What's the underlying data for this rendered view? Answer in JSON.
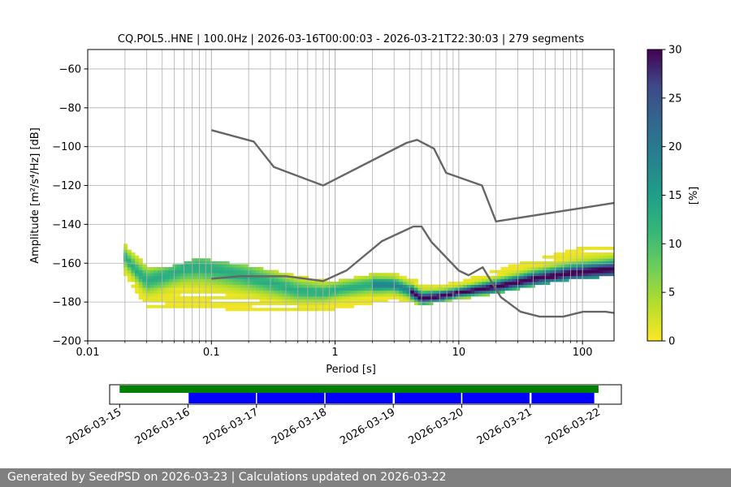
{
  "chart_data": {
    "type": "heatmap",
    "title": "CQ.POL5..HNE | 100.0Hz | 2026-03-16T00:00:03 - 2026-03-21T22:30:03 | 279 segments",
    "xlabel": "Period [s]",
    "ylabel": "Amplitude [m²/s⁴/Hz] [dB]",
    "x_scale": "log",
    "xlim": [
      0.01,
      180
    ],
    "ylim": [
      -200,
      -50
    ],
    "x_ticks": [
      0.01,
      0.1,
      1,
      10,
      100
    ],
    "x_tick_labels": [
      "0.01",
      "0.1",
      "1",
      "10",
      "100"
    ],
    "y_ticks": [
      -200,
      -180,
      -160,
      -140,
      -120,
      -100,
      -80,
      -60
    ],
    "y_tick_labels": [
      "−200",
      "−180",
      "−160",
      "−140",
      "−120",
      "−100",
      "−80",
      "−60"
    ],
    "grid": true,
    "colormap": "viridis_r",
    "colorbar": {
      "label": "[%]",
      "range": [
        0,
        30
      ],
      "ticks": [
        0,
        5,
        10,
        15,
        20,
        25,
        30
      ],
      "tick_labels": [
        "0",
        "5",
        "10",
        "15",
        "20",
        "25",
        "30"
      ]
    },
    "mode_curve": [
      {
        "period": 0.02,
        "db": -157
      },
      {
        "period": 0.025,
        "db": -164
      },
      {
        "period": 0.03,
        "db": -169
      },
      {
        "period": 0.04,
        "db": -167
      },
      {
        "period": 0.06,
        "db": -163
      },
      {
        "period": 0.08,
        "db": -162
      },
      {
        "period": 0.12,
        "db": -164
      },
      {
        "period": 0.2,
        "db": -167
      },
      {
        "period": 0.3,
        "db": -170
      },
      {
        "period": 0.5,
        "db": -174
      },
      {
        "period": 0.8,
        "db": -175
      },
      {
        "period": 1.2,
        "db": -173
      },
      {
        "period": 2,
        "db": -171
      },
      {
        "period": 3,
        "db": -171
      },
      {
        "period": 4,
        "db": -174
      },
      {
        "period": 5,
        "db": -178
      },
      {
        "period": 7,
        "db": -177
      },
      {
        "period": 10,
        "db": -175
      },
      {
        "period": 20,
        "db": -172
      },
      {
        "period": 40,
        "db": -168
      },
      {
        "period": 80,
        "db": -165
      },
      {
        "period": 180,
        "db": -163
      }
    ],
    "spread_band": [
      {
        "period": 0.02,
        "upper": -151,
        "lower": -166
      },
      {
        "period": 0.03,
        "upper": -162,
        "lower": -182
      },
      {
        "period": 0.05,
        "upper": -162,
        "lower": -182
      },
      {
        "period": 0.08,
        "upper": -158,
        "lower": -182
      },
      {
        "period": 0.2,
        "upper": -162,
        "lower": -184
      },
      {
        "period": 0.5,
        "upper": -167,
        "lower": -184
      },
      {
        "period": 1,
        "upper": -170,
        "lower": -183
      },
      {
        "period": 2,
        "upper": -166,
        "lower": -180
      },
      {
        "period": 3,
        "upper": -166,
        "lower": -178
      },
      {
        "period": 5,
        "upper": -170,
        "lower": -181
      },
      {
        "period": 10,
        "upper": -170,
        "lower": -178
      },
      {
        "period": 20,
        "upper": -164,
        "lower": -175
      },
      {
        "period": 50,
        "upper": -157,
        "lower": -170
      },
      {
        "period": 100,
        "upper": -152,
        "lower": -167
      },
      {
        "period": 180,
        "upper": -150,
        "lower": -166
      }
    ],
    "noise_models": [
      {
        "name": "",
        "points": [
          {
            "period": 0.1,
            "db": -91.5
          },
          {
            "period": 0.22,
            "db": -97.4
          },
          {
            "period": 0.32,
            "db": -110.5
          },
          {
            "period": 0.8,
            "db": -120
          },
          {
            "period": 3.8,
            "db": -98
          },
          {
            "period": 4.6,
            "db": -96.5
          },
          {
            "period": 6.3,
            "db": -101
          },
          {
            "period": 7.9,
            "db": -113.5
          },
          {
            "period": 15.4,
            "db": -120
          },
          {
            "period": 20,
            "db": -138.5
          },
          {
            "period": 180,
            "db": -129
          }
        ]
      },
      {
        "name": "",
        "points": [
          {
            "period": 0.1,
            "db": -168
          },
          {
            "period": 0.17,
            "db": -166.7
          },
          {
            "period": 0.4,
            "db": -166.7
          },
          {
            "period": 0.8,
            "db": -169.2
          },
          {
            "period": 1.24,
            "db": -163.7
          },
          {
            "period": 2.4,
            "db": -148.6
          },
          {
            "period": 4.3,
            "db": -141.1
          },
          {
            "period": 5,
            "db": -141.1
          },
          {
            "period": 6,
            "db": -149
          },
          {
            "period": 10,
            "db": -163.8
          },
          {
            "period": 12,
            "db": -166.2
          },
          {
            "period": 15.6,
            "db": -162.1
          },
          {
            "period": 21.9,
            "db": -177.5
          },
          {
            "period": 31.6,
            "db": -185
          },
          {
            "period": 45,
            "db": -187.5
          },
          {
            "period": 70,
            "db": -187.5
          },
          {
            "period": 101,
            "db": -185
          },
          {
            "period": 154,
            "db": -185
          },
          {
            "period": 180,
            "db": -185.6
          }
        ]
      }
    ],
    "data_availability": {
      "dates": [
        "2026-03-15",
        "2026-03-16",
        "2026-03-17",
        "2026-03-18",
        "2026-03-19",
        "2026-03-20",
        "2026-03-21",
        "2026-03-22"
      ],
      "range": [
        "2026-03-14T20:30",
        "2026-03-22T08:00"
      ],
      "available": [
        {
          "start": "2026-03-15T00:00",
          "end": "2026-03-22T00:00"
        }
      ],
      "used": [
        {
          "start": "2026-03-16T00:00",
          "end": "2026-03-19T00:00"
        },
        {
          "start": "2026-03-19T00:30",
          "end": "2026-03-21T00:00"
        },
        {
          "start": "2026-03-21T00:30",
          "end": "2026-03-21T22:30"
        }
      ],
      "available_color": "#008000",
      "used_color": "#0000ff",
      "marker_color": "#ffffff"
    },
    "noise_model_color": "#666666",
    "grid_color": "#b0b0b0"
  },
  "footer": {
    "text": "Generated by SeedPSD on 2026-03-23 | Calculations updated on 2026-03-22"
  }
}
